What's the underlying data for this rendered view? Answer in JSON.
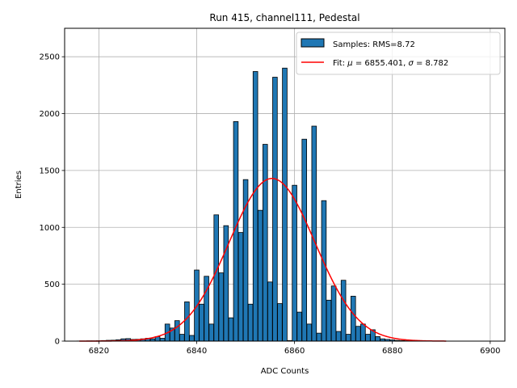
{
  "chart_data": {
    "type": "bar",
    "title": "Run 415, channel111, Pedestal",
    "xlabel": "ADC Counts",
    "ylabel": "Entries",
    "xlim": [
      6813,
      6903
    ],
    "ylim": [
      0,
      2750
    ],
    "grid": true,
    "legend_position": "top-right",
    "x_ticks": [
      6820,
      6840,
      6860,
      6880,
      6900
    ],
    "y_ticks": [
      0,
      500,
      1000,
      1500,
      2000,
      2500
    ],
    "histogram": {
      "name": "Samples: RMS=8.72",
      "color": "#1f77b4",
      "edgecolor": "#000000",
      "bin_width": 0.95,
      "x": [
        6816,
        6817,
        6818,
        6819,
        6820,
        6821,
        6822,
        6823,
        6824,
        6825,
        6826,
        6827,
        6828,
        6829,
        6830,
        6831,
        6832,
        6833,
        6834,
        6835,
        6836,
        6837,
        6838,
        6839,
        6840,
        6841,
        6842,
        6843,
        6844,
        6845,
        6846,
        6847,
        6848,
        6849,
        6850,
        6851,
        6852,
        6853,
        6854,
        6855,
        6856,
        6857,
        6858,
        6859,
        6860,
        6861,
        6862,
        6863,
        6864,
        6865,
        6866,
        6867,
        6868,
        6869,
        6870,
        6871,
        6872,
        6873,
        6874,
        6875,
        6876,
        6877,
        6878,
        6879,
        6880,
        6881,
        6882,
        6883,
        6884,
        6885,
        6886,
        6887,
        6888,
        6889,
        6890,
        6891
      ],
      "values": [
        1,
        1,
        2,
        2,
        3,
        5,
        7,
        8,
        12,
        20,
        22,
        15,
        16,
        20,
        25,
        20,
        40,
        25,
        150,
        115,
        180,
        60,
        345,
        50,
        625,
        325,
        570,
        150,
        1110,
        600,
        1015,
        205,
        1930,
        955,
        1420,
        325,
        2370,
        1150,
        1730,
        520,
        2320,
        330,
        2400,
        5,
        1370,
        255,
        1775,
        150,
        1890,
        70,
        1235,
        360,
        485,
        85,
        535,
        60,
        395,
        130,
        150,
        60,
        100,
        40,
        20,
        15,
        10,
        6,
        4,
        3,
        2,
        1,
        1,
        1,
        0,
        0,
        0,
        0
      ]
    },
    "fit": {
      "name": "Fit: μ = 6855.401, σ = 8.782",
      "label_prefix": "Fit: ",
      "mu_symbol": "μ",
      "mu_text": " = 6855.401, ",
      "sigma_symbol": "σ",
      "sigma_text": " = 8.782",
      "color": "#ff0000",
      "mu": 6855.401,
      "sigma": 8.782,
      "amplitude": 1430,
      "x_range": [
        6816,
        6891
      ]
    }
  }
}
